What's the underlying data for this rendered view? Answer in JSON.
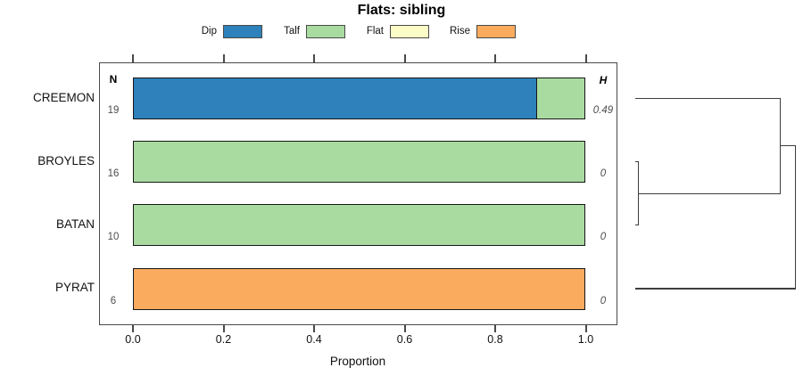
{
  "chart_data": {
    "type": "bar",
    "orientation": "horizontal-stacked",
    "title": "Flats: sibling",
    "xlabel": "Proportion",
    "xlim": [
      0,
      1
    ],
    "xticks": [
      "0.0",
      "0.2",
      "0.4",
      "0.6",
      "0.8",
      "1.0"
    ],
    "xtick_values": [
      0,
      0.2,
      0.4,
      0.6,
      0.8,
      1.0
    ],
    "grid": false,
    "legend_position": "top",
    "columns": {
      "n": "N",
      "h": "H"
    },
    "legend": [
      {
        "label": "Dip",
        "color": "#2e81ba"
      },
      {
        "label": "Talf",
        "color": "#a9dba1"
      },
      {
        "label": "Flat",
        "color": "#fcfcc6"
      },
      {
        "label": "Rise",
        "color": "#faab5e"
      }
    ],
    "colors": {
      "Dip": "#2e81ba",
      "Talf": "#a9dba1",
      "Flat": "#fcfcc6",
      "Rise": "#faab5e"
    },
    "rows": [
      {
        "category": "CREEMON",
        "n": "19",
        "h": "0.49",
        "segments": [
          {
            "name": "Dip",
            "value": 0.893
          },
          {
            "name": "Talf",
            "value": 0.107
          }
        ]
      },
      {
        "category": "BROYLES",
        "n": "16",
        "h": "0",
        "segments": [
          {
            "name": "Talf",
            "value": 1
          }
        ]
      },
      {
        "category": "BATAN",
        "n": "10",
        "h": "0",
        "segments": [
          {
            "name": "Talf",
            "value": 1
          }
        ]
      },
      {
        "category": "PYRAT",
        "n": "6",
        "h": "0",
        "segments": [
          {
            "name": "Rise",
            "value": 1
          }
        ]
      }
    ],
    "dendrogram": {
      "leaves": [
        "CREEMON",
        "BROYLES",
        "BATAN",
        "PYRAT"
      ],
      "merges": [
        {
          "children": [
            "leaf:1",
            "leaf:2"
          ],
          "distance": 0.017
        },
        {
          "children": [
            "merge:0",
            "leaf:0"
          ],
          "distance": 0.905
        },
        {
          "children": [
            "merge:1",
            "leaf:3"
          ],
          "distance": 1.0
        }
      ]
    }
  }
}
